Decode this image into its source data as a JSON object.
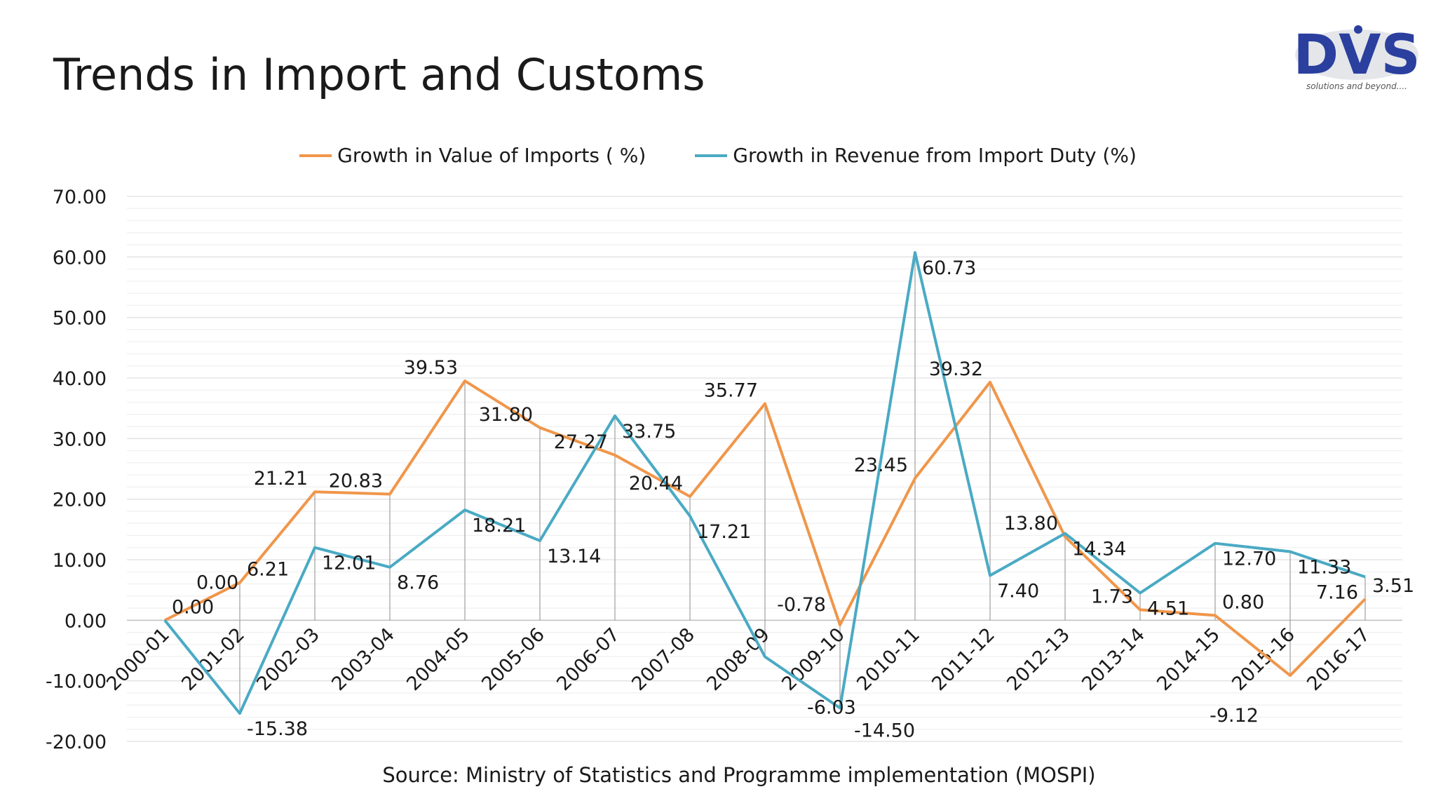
{
  "title": "Trends in Import and Customs",
  "logo": {
    "text": "DVS",
    "tagline": "solutions and beyond....",
    "color": "#2a3f9e"
  },
  "source": "Source: Ministry of Statistics and Programme implementation (MOSPI)",
  "chart_data": {
    "type": "line",
    "title": "",
    "xlabel": "",
    "ylabel": "",
    "ylim": [
      -20,
      70
    ],
    "yticks": [
      "70.00",
      "60.00",
      "50.00",
      "40.00",
      "30.00",
      "20.00",
      "10.00",
      "0.00",
      "-10.00",
      "-20.00"
    ],
    "ytick_values": [
      70,
      60,
      50,
      40,
      30,
      20,
      10,
      0,
      -10,
      -20
    ],
    "grid": true,
    "legend": "top",
    "categories": [
      "2000-01",
      "2001-02",
      "2002-03",
      "2003-04",
      "2004-05",
      "2005-06",
      "2006-07",
      "2007-08",
      "2008-09",
      "2009-10",
      "2010-11",
      "2011-12",
      "2012-13",
      "2013-14",
      "2014-15",
      "2015-16",
      "2016-17"
    ],
    "series": [
      {
        "name": "Growth in Value of Imports ( %)",
        "color": "#f0964a",
        "values": [
          0.0,
          6.21,
          21.21,
          20.83,
          39.53,
          31.8,
          27.27,
          20.44,
          35.77,
          -0.78,
          23.45,
          39.32,
          13.8,
          1.73,
          0.8,
          -9.12,
          3.51
        ],
        "labels": [
          "0.00",
          "6.21",
          "21.21",
          "20.83",
          "39.53",
          "31.80",
          "27.27",
          "20.44",
          "35.77",
          "-0.78",
          "23.45",
          "39.32",
          "13.80",
          "1.73",
          "0.80",
          "-9.12",
          "3.51"
        ]
      },
      {
        "name": "Growth in Revenue from Import Duty (%)",
        "color": "#4aaac4",
        "values": [
          0.0,
          -15.38,
          12.01,
          8.76,
          18.21,
          13.14,
          33.75,
          17.21,
          -6.03,
          -14.5,
          60.73,
          7.4,
          14.34,
          4.51,
          12.7,
          11.33,
          7.16
        ],
        "labels": [
          "0.00",
          "-15.38",
          "12.01",
          "8.76",
          "18.21",
          "13.14",
          "33.75",
          "17.21",
          "-6.03",
          "-14.50",
          "60.73",
          "7.40",
          "14.34",
          "4.51",
          "12.70",
          "11.33",
          "7.16"
        ]
      }
    ]
  }
}
